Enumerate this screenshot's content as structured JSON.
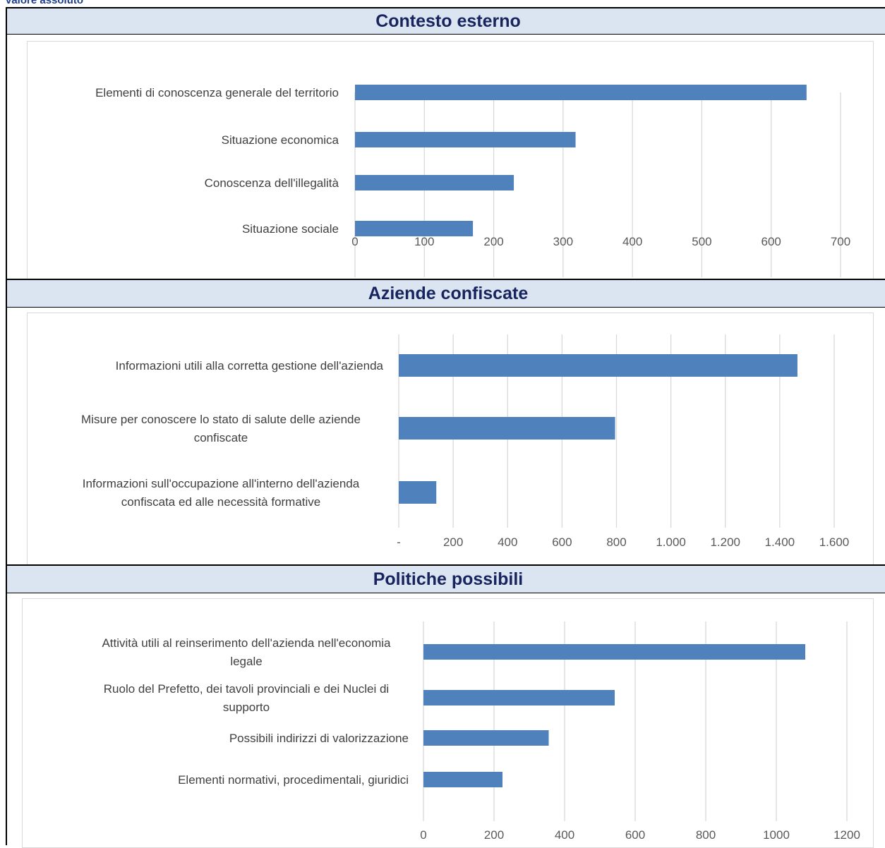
{
  "caption": "valore assoluto",
  "colors": {
    "bar": "#4f81bd",
    "header_bg": "#dbe5f1",
    "header_text": "#17245e",
    "grid": "#d9d9d9",
    "caption": "#1f3f8a"
  },
  "panels": [
    {
      "title": "Contesto esterno"
    },
    {
      "title": "Aziende confiscate"
    },
    {
      "title": "Politiche possibili"
    }
  ],
  "chart_data": [
    {
      "type": "bar",
      "orientation": "horizontal",
      "title": "Contesto esterno",
      "categories": [
        [
          "Elementi di conoscenza generale del territorio"
        ],
        [
          "Situazione economica"
        ],
        [
          "Conoscenza dell'illegalità"
        ],
        [
          "Situazione sociale"
        ]
      ],
      "values": [
        651,
        318,
        229,
        170
      ],
      "xlim": [
        0,
        700
      ],
      "ticks": [
        0,
        100,
        200,
        300,
        400,
        500,
        600,
        700
      ],
      "tick_labels": [
        "0",
        "100",
        "200",
        "300",
        "400",
        "500",
        "600",
        "700"
      ],
      "grid": true,
      "legend": "none"
    },
    {
      "type": "bar",
      "orientation": "horizontal",
      "title": "Aziende confiscate",
      "categories": [
        [
          "Informazioni utili alla corretta gestione dell'azienda"
        ],
        [
          "Misure per conoscere lo stato di salute delle aziende",
          "confiscate"
        ],
        [
          "Informazioni sull'occupazione all'interno dell'azienda",
          "confiscata ed alle necessità formative"
        ]
      ],
      "values": [
        1465,
        795,
        138
      ],
      "xlim": [
        0,
        1600
      ],
      "ticks": [
        0,
        200,
        400,
        600,
        800,
        1000,
        1200,
        1400,
        1600
      ],
      "tick_labels": [
        "-",
        "200",
        "400",
        "600",
        "800",
        "1.000",
        "1.200",
        "1.400",
        "1.600"
      ],
      "grid": true,
      "legend": "none"
    },
    {
      "type": "bar",
      "orientation": "horizontal",
      "title": "Politiche possibili",
      "categories": [
        [
          "Attività utili al reinserimento dell'azienda nell'economia",
          "legale"
        ],
        [
          "Ruolo del Prefetto, dei tavoli provinciali e dei Nuclei di",
          "supporto"
        ],
        [
          "Possibili indirizzi di valorizzazione"
        ],
        [
          "Elementi normativi, procedimentali, giuridici"
        ]
      ],
      "values": [
        1082,
        542,
        355,
        224
      ],
      "xlim": [
        0,
        1200
      ],
      "ticks": [
        0,
        200,
        400,
        600,
        800,
        1000,
        1200
      ],
      "tick_labels": [
        "0",
        "200",
        "400",
        "600",
        "800",
        "1000",
        "1200"
      ],
      "grid": true,
      "legend": "none"
    }
  ]
}
